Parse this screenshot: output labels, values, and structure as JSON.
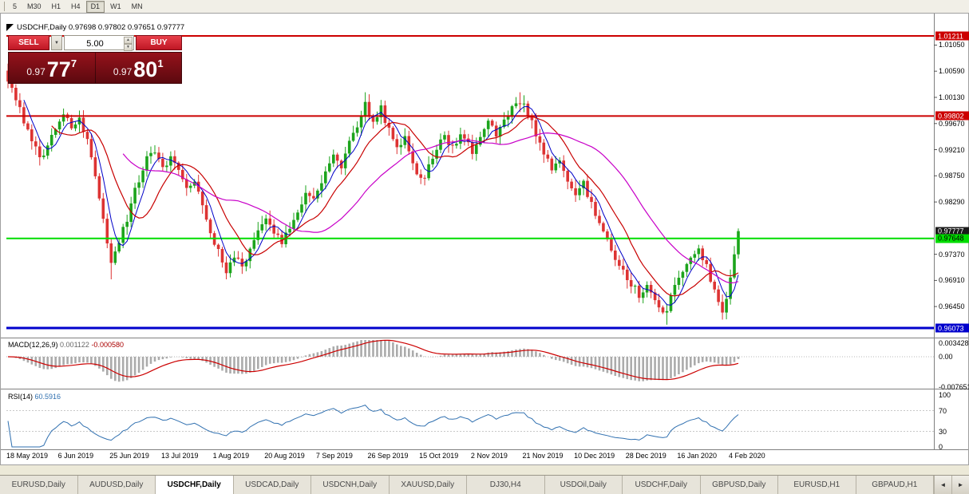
{
  "toolbar": {
    "periods": [
      "5",
      "M30",
      "H1",
      "H4",
      "D1",
      "W1",
      "MN"
    ],
    "active": "D1"
  },
  "chart": {
    "title": "USDCHF,Daily 0.97698 0.97802 0.97651 0.97777"
  },
  "trade_panel": {
    "sell_label": "SELL",
    "buy_label": "BUY",
    "volume": "5.00",
    "sell_price": {
      "big": "0.97",
      "pips": "77",
      "pt": "7"
    },
    "buy_price": {
      "big": "0.97",
      "pips": "80",
      "pt": "1"
    },
    "dropdown_icon": "▼",
    "spin_up_icon": "▲",
    "spin_down_icon": "▼"
  },
  "indicators": {
    "macd_name": "MACD(12,26,9)",
    "macd_value": "0.001122",
    "macd_signal": "-0.000580",
    "rsi_name": "RSI(14)",
    "rsi_value": "60.5916"
  },
  "tabbar": {
    "tabs": [
      "EURUSD,Daily",
      "AUDUSD,Daily",
      "USDCHF,Daily",
      "USDCAD,Daily",
      "USDCNH,Daily",
      "XAUUSD,Daily",
      "DJ30,H4",
      "USDOil,Daily",
      "USDCHF,Daily",
      "GBPUSD,Daily",
      "EURUSD,H1",
      "GBPAUD,H1"
    ],
    "active_index": 2,
    "scroll_left": "◄",
    "scroll_right": "►"
  },
  "chart_data": {
    "type": "candlestick",
    "symbol": "USDCHF",
    "timeframe": "Daily",
    "ohlc_current": {
      "open": 0.97698,
      "high": 0.97802,
      "low": 0.97651,
      "close": 0.97777
    },
    "bar_count": 185,
    "first_open": 1.006,
    "last_close": 0.97777,
    "noise": 0.0014,
    "bull_color": "#1CA41C",
    "bear_color": "#DD3333",
    "close_waypoints": [
      [
        0,
        1.0045
      ],
      [
        2,
        1.001
      ],
      [
        4,
        0.997
      ],
      [
        6,
        0.994
      ],
      [
        8,
        0.9905
      ],
      [
        10,
        0.993
      ],
      [
        12,
        0.996
      ],
      [
        14,
        0.9985
      ],
      [
        16,
        0.9955
      ],
      [
        18,
        0.9975
      ],
      [
        20,
        0.994
      ],
      [
        22,
        0.988
      ],
      [
        24,
        0.98
      ],
      [
        26,
        0.9725
      ],
      [
        28,
        0.976
      ],
      [
        30,
        0.98
      ],
      [
        32,
        0.985
      ],
      [
        34,
        0.989
      ],
      [
        36,
        0.992
      ],
      [
        38,
        0.99
      ],
      [
        39,
        0.9885
      ],
      [
        41,
        0.991
      ],
      [
        43,
        0.988
      ],
      [
        45,
        0.985
      ],
      [
        47,
        0.9865
      ],
      [
        49,
        0.982
      ],
      [
        51,
        0.978
      ],
      [
        53,
        0.974
      ],
      [
        55,
        0.971
      ],
      [
        57,
        0.9735
      ],
      [
        59,
        0.9715
      ],
      [
        61,
        0.9745
      ],
      [
        63,
        0.9775
      ],
      [
        65,
        0.9795
      ],
      [
        67,
        0.978
      ],
      [
        69,
        0.976
      ],
      [
        71,
        0.9785
      ],
      [
        73,
        0.9815
      ],
      [
        75,
        0.9845
      ],
      [
        77,
        0.983
      ],
      [
        78,
        0.985
      ],
      [
        80,
        0.988
      ],
      [
        82,
        0.991
      ],
      [
        84,
        0.989
      ],
      [
        86,
        0.9935
      ],
      [
        88,
        0.9965
      ],
      [
        90,
        1.0
      ],
      [
        92,
        0.9975
      ],
      [
        94,
        0.9995
      ],
      [
        96,
        0.9955
      ],
      [
        98,
        0.992
      ],
      [
        100,
        0.994
      ],
      [
        102,
        0.99
      ],
      [
        104,
        0.9865
      ],
      [
        106,
        0.989
      ],
      [
        108,
        0.992
      ],
      [
        110,
        0.9945
      ],
      [
        112,
        0.9925
      ],
      [
        114,
        0.995
      ],
      [
        116,
        0.993
      ],
      [
        117,
        0.9915
      ],
      [
        119,
        0.9945
      ],
      [
        121,
        0.997
      ],
      [
        123,
        0.995
      ],
      [
        125,
        0.9975
      ],
      [
        127,
        0.9995
      ],
      [
        129,
        1.0008
      ],
      [
        131,
        0.9985
      ],
      [
        133,
        0.995
      ],
      [
        135,
        0.9915
      ],
      [
        137,
        0.9885
      ],
      [
        139,
        0.99
      ],
      [
        141,
        0.987
      ],
      [
        143,
        0.984
      ],
      [
        145,
        0.986
      ],
      [
        147,
        0.9825
      ],
      [
        149,
        0.979
      ],
      [
        151,
        0.976
      ],
      [
        153,
        0.973
      ],
      [
        155,
        0.971
      ],
      [
        157,
        0.9685
      ],
      [
        159,
        0.9665
      ],
      [
        161,
        0.968
      ],
      [
        163,
        0.9655
      ],
      [
        165,
        0.964
      ],
      [
        166,
        0.9635
      ],
      [
        167,
        0.966
      ],
      [
        168,
        0.968
      ],
      [
        170,
        0.971
      ],
      [
        172,
        0.9735
      ],
      [
        174,
        0.9745
      ],
      [
        176,
        0.9715
      ],
      [
        178,
        0.967
      ],
      [
        180,
        0.9635
      ],
      [
        181,
        0.9665
      ],
      [
        182,
        0.97
      ],
      [
        183,
        0.974
      ],
      [
        184,
        0.97777
      ]
    ],
    "forced_highs": {
      "0": 1.006,
      "90": 1.0022,
      "129": 1.0022,
      "184": 0.97802
    },
    "forced_lows": {
      "26": 0.9693,
      "55": 0.9693,
      "166": 0.9613,
      "180": 0.9622
    },
    "moving_averages": [
      {
        "period": 5,
        "color": "#0000C8",
        "width": 1
      },
      {
        "period": 12,
        "color": "#C80000",
        "width": 1.2
      },
      {
        "period": 30,
        "color": "#C800C8",
        "width": 1.2
      }
    ],
    "hlines": [
      {
        "price": 1.01211,
        "color": "#CC0000",
        "width": 2
      },
      {
        "price": 0.99802,
        "color": "#CC0000",
        "width": 2
      },
      {
        "price": 0.97648,
        "color": "#00DD00",
        "width": 2
      },
      {
        "price": 0.96073,
        "color": "#0000CC",
        "width": 3
      }
    ],
    "price_axis": {
      "ticks": [
        "1.01050",
        "1.00590",
        "1.00130",
        "0.99670",
        "0.99210",
        "0.98750",
        "0.98290",
        "0.97370",
        "0.96910",
        "0.96450"
      ],
      "labels": [
        {
          "text": "1.01211",
          "price": 1.01211,
          "bg": "#CC0000",
          "fg": "#FFFFFF"
        },
        {
          "text": "0.99802",
          "price": 0.99802,
          "bg": "#CC0000",
          "fg": "#FFFFFF"
        },
        {
          "text": "0.97777",
          "price": 0.97777,
          "bg": "#1A1A1A",
          "fg": "#FFFFFF"
        },
        {
          "text": "0.97648",
          "price": 0.97648,
          "bg": "#00DD00",
          "fg": "#000000"
        },
        {
          "text": "0.96073",
          "price": 0.96073,
          "bg": "#0000CC",
          "fg": "#FFFFFF"
        }
      ]
    },
    "macd": {
      "params": "12,26,9",
      "value": "0.001122",
      "signal_value": "-0.000580",
      "axis": [
        "0.003428",
        "0.00",
        "-0.007651"
      ],
      "hist_color": "#ABABAB",
      "signal_color": "#CC0000"
    },
    "rsi": {
      "period": 14,
      "value": "60.5916",
      "levels": [
        100,
        70,
        30,
        0
      ],
      "color": "#3070B0"
    },
    "dates": [
      "18 May 2019",
      "6 Jun 2019",
      "25 Jun 2019",
      "13 Jul 2019",
      "1 Aug 2019",
      "20 Aug 2019",
      "7 Sep 2019",
      "26 Sep 2019",
      "15 Oct 2019",
      "2 Nov 2019",
      "21 Nov 2019",
      "10 Dec 2019",
      "28 Dec 2019",
      "16 Jan 2020",
      "4 Feb 2020"
    ]
  }
}
